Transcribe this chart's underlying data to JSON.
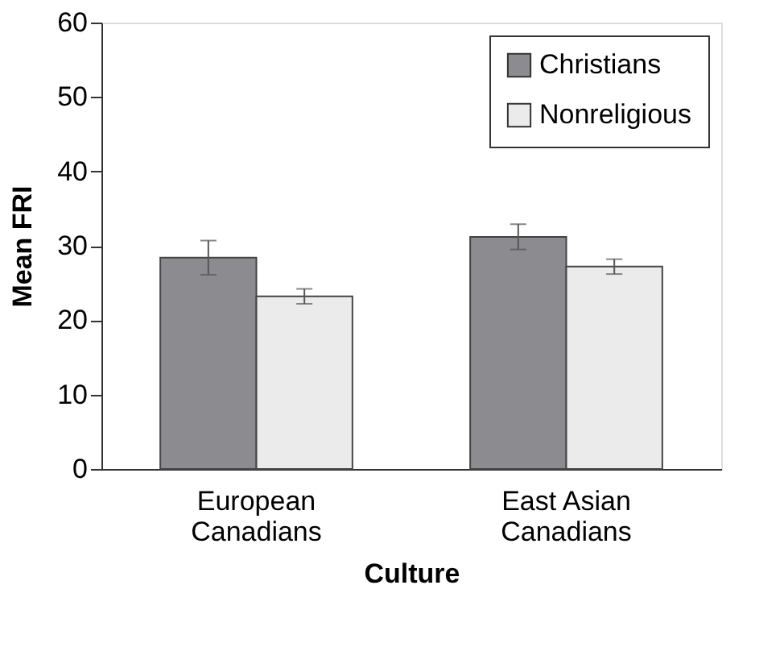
{
  "chart_data": {
    "type": "bar",
    "xlabel": "Culture",
    "ylabel": "Mean FRI",
    "categories": [
      "European Canadians",
      "East Asian Canadians"
    ],
    "series": [
      {
        "name": "Christians",
        "color": "#8c8c90",
        "values": [
          28.4,
          31.2
        ],
        "errors": [
          2.3,
          1.7
        ]
      },
      {
        "name": "Nonreligious",
        "color": "#ebebeb",
        "values": [
          23.2,
          27.2
        ],
        "errors": [
          1.0,
          1.0
        ]
      }
    ],
    "ylim": [
      0,
      60
    ],
    "yticks": [
      0,
      10,
      20,
      30,
      40,
      50,
      60
    ],
    "grid": false,
    "legend": "top right"
  }
}
